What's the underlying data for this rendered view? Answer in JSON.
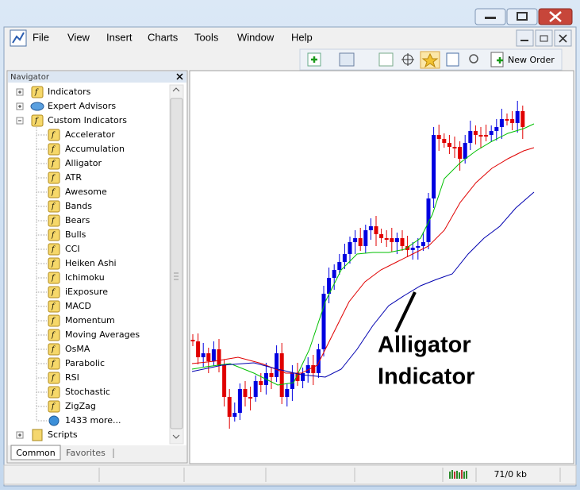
{
  "window": {
    "menu": [
      "File",
      "View",
      "Insert",
      "Charts",
      "Tools",
      "Window",
      "Help"
    ],
    "toolbar": {
      "new_order": "New Order"
    }
  },
  "navigator": {
    "title": "Navigator",
    "tree": [
      {
        "label": "Indicators"
      },
      {
        "label": "Expert Advisors"
      },
      {
        "label": "Custom Indicators",
        "children": [
          "Accelerator",
          "Accumulation",
          "Alligator",
          "ATR",
          "Awesome",
          "Bands",
          "Bears",
          "Bulls",
          "CCI",
          "Heiken Ashi",
          "Ichimoku",
          "iExposure",
          "MACD",
          "Momentum",
          "Moving Averages",
          "OsMA",
          "Parabolic",
          "RSI",
          "Stochastic",
          "ZigZag",
          "1433 more..."
        ]
      },
      {
        "label": "Scripts"
      }
    ],
    "tabs": [
      "Common",
      "Favorites"
    ]
  },
  "chart": {
    "annotation": [
      "Alligator",
      "Indicator"
    ]
  },
  "status_bar": {
    "memory": "71/0 kb"
  }
}
